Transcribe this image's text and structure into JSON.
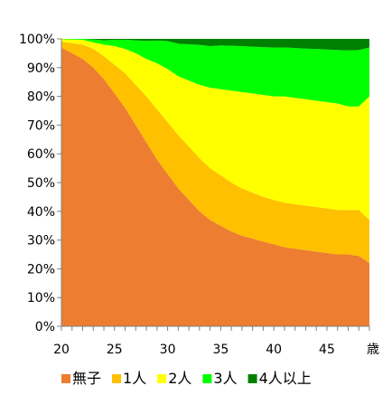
{
  "chart_data": {
    "type": "area",
    "stacked_percent": true,
    "x_unit_label": "歳",
    "x_ticks": [
      20,
      25,
      30,
      35,
      40,
      45
    ],
    "y_ticks": [
      "0%",
      "10%",
      "20%",
      "30%",
      "40%",
      "50%",
      "60%",
      "70%",
      "80%",
      "90%",
      "100%"
    ],
    "xlim": [
      20,
      49
    ],
    "ylim": [
      0,
      100
    ],
    "grid": false,
    "legend_position": "bottom",
    "x": [
      20,
      21,
      22,
      23,
      24,
      25,
      26,
      27,
      28,
      29,
      30,
      31,
      32,
      33,
      34,
      35,
      36,
      37,
      38,
      39,
      40,
      41,
      42,
      43,
      44,
      45,
      46,
      47,
      48,
      49
    ],
    "series": [
      {
        "name": "無子",
        "color": "#ED7D31",
        "values": [
          97,
          95,
          93,
          90,
          86,
          81,
          76,
          70,
          64,
          58,
          53,
          48,
          44,
          40,
          37,
          35,
          33,
          31.5,
          30.5,
          29.5,
          28.5,
          27.5,
          27,
          26.5,
          26,
          25.5,
          25,
          25,
          24.5,
          22
        ]
      },
      {
        "name": "1人",
        "color": "#FFC000",
        "values": [
          2,
          3.5,
          5,
          6.5,
          8,
          10,
          12,
          14,
          16,
          17.5,
          18,
          18.5,
          18.5,
          18.5,
          18,
          17.5,
          17,
          16.5,
          16,
          15.5,
          15.5,
          15.5,
          15.5,
          15.5,
          15.5,
          15.5,
          15.5,
          15.5,
          16,
          15
        ]
      },
      {
        "name": "2人",
        "color": "#FFFF00",
        "values": [
          0.9,
          1.3,
          1.7,
          2.3,
          4,
          6.5,
          8.5,
          11,
          13,
          16,
          18.5,
          20.5,
          23,
          25.5,
          28,
          30,
          32,
          33.5,
          34.5,
          35.5,
          36,
          37,
          37,
          37,
          37,
          37,
          37,
          36,
          36,
          43
        ]
      },
      {
        "name": "3人",
        "color": "#00FF00",
        "values": [
          0.1,
          0.2,
          0.3,
          1,
          1.5,
          2.2,
          3.2,
          4.5,
          6.3,
          7.9,
          9.7,
          11.3,
          12.6,
          13.9,
          14.5,
          15.2,
          15.6,
          16,
          16.3,
          16.6,
          17,
          17,
          17.3,
          17.6,
          18,
          18.3,
          18.6,
          19.5,
          19.6,
          17
        ]
      },
      {
        "name": "4人以上",
        "color": "#008000",
        "values": [
          0,
          0,
          0,
          0.2,
          0.5,
          0.3,
          0.3,
          0.5,
          0.7,
          0.6,
          0.8,
          1.7,
          1.9,
          2.1,
          2.5,
          2.3,
          2.4,
          2.5,
          2.7,
          2.9,
          3,
          3,
          3.2,
          3.4,
          3.5,
          3.7,
          3.9,
          4,
          3.9,
          3
        ]
      }
    ]
  }
}
